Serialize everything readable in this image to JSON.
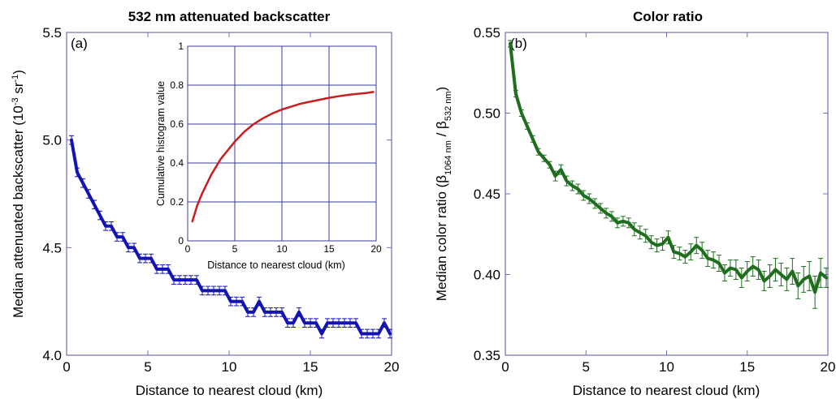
{
  "chart_data": [
    {
      "type": "line",
      "panel_label": "(a)",
      "title": "532 nm attenuated backscatter",
      "xlabel": "Distance to nearest cloud (km)",
      "ylabel_main": "Median attenuated backscatter (10",
      "ylabel_sup1": "-3",
      "ylabel_mid": " sr",
      "ylabel_sup2": "-1",
      "ylabel_end": ")",
      "xlim": [
        0,
        20
      ],
      "ylim": [
        4.0,
        5.5
      ],
      "xticks": [
        0,
        5,
        10,
        15,
        20
      ],
      "yticks": [
        4.0,
        4.5,
        5.0,
        5.5
      ],
      "xtick_labels": [
        "0",
        "5",
        "10",
        "15",
        "20"
      ],
      "ytick_labels": [
        "4.0",
        "4.5",
        "5.0",
        "5.5"
      ],
      "grid": false,
      "color": "#1414b4",
      "error_bars": true,
      "error_halfwidth": 0.02,
      "series": [
        {
          "x": [
            0.3,
            0.65,
            1.0,
            1.35,
            1.7,
            2.05,
            2.4,
            2.75,
            3.1,
            3.45,
            3.8,
            4.15,
            4.5,
            4.85,
            5.2,
            5.55,
            5.9,
            6.25,
            6.6,
            6.95,
            7.3,
            7.65,
            8.0,
            8.35,
            8.7,
            9.05,
            9.4,
            9.75,
            10.1,
            10.45,
            10.8,
            11.15,
            11.5,
            11.85,
            12.2,
            12.55,
            12.9,
            13.25,
            13.6,
            13.95,
            14.3,
            14.65,
            15.0,
            15.35,
            15.7,
            16.05,
            16.4,
            16.75,
            17.1,
            17.45,
            17.8,
            18.15,
            18.5,
            18.85,
            19.2,
            19.55,
            19.9
          ],
          "y": [
            5.0,
            4.85,
            4.8,
            4.75,
            4.7,
            4.65,
            4.6,
            4.6,
            4.55,
            4.55,
            4.5,
            4.5,
            4.45,
            4.45,
            4.45,
            4.4,
            4.4,
            4.4,
            4.35,
            4.35,
            4.35,
            4.35,
            4.35,
            4.3,
            4.3,
            4.3,
            4.3,
            4.3,
            4.25,
            4.25,
            4.25,
            4.2,
            4.2,
            4.25,
            4.2,
            4.2,
            4.2,
            4.2,
            4.15,
            4.15,
            4.2,
            4.15,
            4.15,
            4.15,
            4.1,
            4.15,
            4.15,
            4.15,
            4.15,
            4.15,
            4.15,
            4.1,
            4.1,
            4.1,
            4.1,
            4.15,
            4.1
          ]
        }
      ],
      "inset": {
        "type": "line",
        "xlabel": "Distance to nearest cloud (km)",
        "ylabel": "Cumulative histogram value",
        "xlim": [
          0,
          20
        ],
        "ylim": [
          0,
          1
        ],
        "xticks": [
          0,
          5,
          10,
          15,
          20
        ],
        "yticks": [
          0,
          0.2,
          0.4,
          0.6,
          0.8,
          1
        ],
        "xtick_labels": [
          "0",
          "5",
          "10",
          "15",
          "20"
        ],
        "ytick_labels": [
          "0",
          "0.2",
          "0.4",
          "0.6",
          "0.8",
          "1"
        ],
        "grid": true,
        "color": "#c81e1e",
        "series": [
          {
            "x": [
              0.5,
              1,
              1.5,
              2,
              2.5,
              3,
              3.5,
              4,
              4.5,
              5,
              6,
              7,
              8,
              9,
              10,
              11,
              12,
              13,
              14,
              15,
              16,
              17,
              18,
              19,
              19.7
            ],
            "y": [
              0.1,
              0.18,
              0.24,
              0.29,
              0.34,
              0.38,
              0.42,
              0.45,
              0.48,
              0.51,
              0.56,
              0.6,
              0.63,
              0.655,
              0.675,
              0.69,
              0.705,
              0.715,
              0.725,
              0.735,
              0.743,
              0.75,
              0.755,
              0.76,
              0.765
            ]
          }
        ]
      }
    },
    {
      "type": "line",
      "panel_label": "(b)",
      "title": "Color ratio",
      "xlabel": "Distance to nearest cloud (km)",
      "ylabel_main": "Median color ratio (β",
      "ylabel_sub1": "1064 nm",
      "ylabel_mid": " / β",
      "ylabel_sub2": "532 nm",
      "ylabel_end": ")",
      "xlim": [
        0,
        20
      ],
      "ylim": [
        0.35,
        0.55
      ],
      "xticks": [
        0,
        5,
        10,
        15,
        20
      ],
      "yticks": [
        0.35,
        0.4,
        0.45,
        0.5,
        0.55
      ],
      "xtick_labels": [
        "0",
        "5",
        "10",
        "15",
        "20"
      ],
      "ytick_labels": [
        "0.35",
        "0.40",
        "0.45",
        "0.50",
        "0.55"
      ],
      "grid": false,
      "color": "#1e6e1e",
      "error_bars": true,
      "series": [
        {
          "x": [
            0.3,
            0.65,
            1.0,
            1.35,
            1.7,
            2.05,
            2.4,
            2.75,
            3.1,
            3.45,
            3.8,
            4.15,
            4.5,
            4.85,
            5.2,
            5.55,
            5.9,
            6.25,
            6.6,
            6.95,
            7.3,
            7.65,
            8.0,
            8.35,
            8.7,
            9.05,
            9.4,
            9.75,
            10.1,
            10.45,
            10.8,
            11.15,
            11.5,
            11.85,
            12.2,
            12.55,
            12.9,
            13.25,
            13.6,
            13.95,
            14.3,
            14.65,
            15.0,
            15.35,
            15.7,
            16.05,
            16.4,
            16.75,
            17.1,
            17.45,
            17.8,
            18.15,
            18.5,
            18.85,
            19.2,
            19.55,
            19.9
          ],
          "y": [
            0.543,
            0.512,
            0.5,
            0.492,
            0.484,
            0.476,
            0.472,
            0.468,
            0.461,
            0.465,
            0.458,
            0.455,
            0.453,
            0.449,
            0.447,
            0.444,
            0.441,
            0.438,
            0.436,
            0.432,
            0.433,
            0.432,
            0.428,
            0.426,
            0.424,
            0.42,
            0.418,
            0.419,
            0.423,
            0.414,
            0.413,
            0.411,
            0.414,
            0.418,
            0.415,
            0.41,
            0.409,
            0.407,
            0.401,
            0.404,
            0.403,
            0.398,
            0.402,
            0.405,
            0.403,
            0.396,
            0.399,
            0.403,
            0.4,
            0.397,
            0.402,
            0.393,
            0.397,
            0.399,
            0.389,
            0.401,
            0.398
          ],
          "error": [
            0.002,
            0.002,
            0.002,
            0.002,
            0.002,
            0.002,
            0.002,
            0.002,
            0.003,
            0.003,
            0.003,
            0.003,
            0.003,
            0.003,
            0.003,
            0.003,
            0.003,
            0.003,
            0.003,
            0.003,
            0.003,
            0.003,
            0.004,
            0.004,
            0.004,
            0.004,
            0.004,
            0.004,
            0.004,
            0.004,
            0.004,
            0.004,
            0.005,
            0.005,
            0.005,
            0.005,
            0.005,
            0.005,
            0.005,
            0.005,
            0.006,
            0.006,
            0.006,
            0.006,
            0.006,
            0.006,
            0.007,
            0.007,
            0.007,
            0.007,
            0.008,
            0.008,
            0.008,
            0.009,
            0.01,
            0.009,
            0.006
          ]
        }
      ]
    }
  ]
}
